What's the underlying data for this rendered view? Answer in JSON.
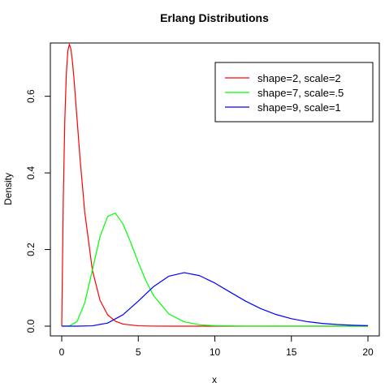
{
  "chart_data": {
    "type": "line",
    "title": "Erlang Distributions",
    "xlabel": "x",
    "ylabel": "Density",
    "xlim": [
      0,
      20
    ],
    "ylim": [
      0,
      0.72
    ],
    "x_ticks": [
      0,
      5,
      10,
      15,
      20
    ],
    "x_tick_labels": [
      "0",
      "5",
      "10",
      "15",
      "20"
    ],
    "y_ticks": [
      0.0,
      0.2,
      0.4,
      0.6
    ],
    "y_tick_labels": [
      "0.0",
      "0.2",
      "0.4",
      "0.6"
    ],
    "grid": false,
    "legend_position": "top-right",
    "series": [
      {
        "name": "shape=2, scale=2",
        "color": "#ff0000",
        "x": [
          0,
          0.1,
          0.2,
          0.3,
          0.4,
          0.5,
          0.6,
          0.7,
          0.8,
          1.0,
          1.2,
          1.5,
          2.0,
          2.5,
          3.0,
          3.5,
          4.0,
          5.0,
          6.0,
          7.0,
          8.0,
          10.0,
          12.0,
          15.0,
          20.0
        ],
        "y": [
          0,
          0.3275,
          0.5363,
          0.6586,
          0.7189,
          0.7358,
          0.7229,
          0.6904,
          0.6461,
          0.5413,
          0.4355,
          0.2987,
          0.1465,
          0.0673,
          0.0297,
          0.0128,
          0.0054,
          0.0009,
          0.0001,
          0.0,
          0.0,
          0.0,
          0.0,
          0.0,
          0.0
        ]
      },
      {
        "name": "shape=7, scale=.5",
        "color": "#00ff00",
        "x": [
          0,
          0.5,
          1.0,
          1.5,
          2.0,
          2.5,
          3.0,
          3.5,
          4.0,
          4.5,
          5.0,
          5.5,
          6.0,
          7.0,
          8.0,
          9.0,
          10.0,
          12.0,
          15.0,
          20.0
        ],
        "y": [
          0,
          0.0005,
          0.012,
          0.0602,
          0.1465,
          0.2336,
          0.2866,
          0.295,
          0.2669,
          0.219,
          0.1663,
          0.1183,
          0.0797,
          0.0318,
          0.0112,
          0.0036,
          0.0011,
          0.0001,
          0.0,
          0.0
        ]
      },
      {
        "name": "shape=9, scale=1",
        "color": "#0000ff",
        "x": [
          0,
          1,
          2,
          3,
          4,
          5,
          6,
          7,
          8,
          9,
          10,
          11,
          12,
          13,
          14,
          15,
          16,
          17,
          18,
          19,
          20
        ],
        "y": [
          0,
          0.0,
          0.0009,
          0.0081,
          0.0298,
          0.0653,
          0.1033,
          0.1304,
          0.1396,
          0.1318,
          0.1126,
          0.0888,
          0.0655,
          0.0457,
          0.0304,
          0.0194,
          0.012,
          0.0072,
          0.0042,
          0.0024,
          0.0013
        ]
      }
    ]
  }
}
